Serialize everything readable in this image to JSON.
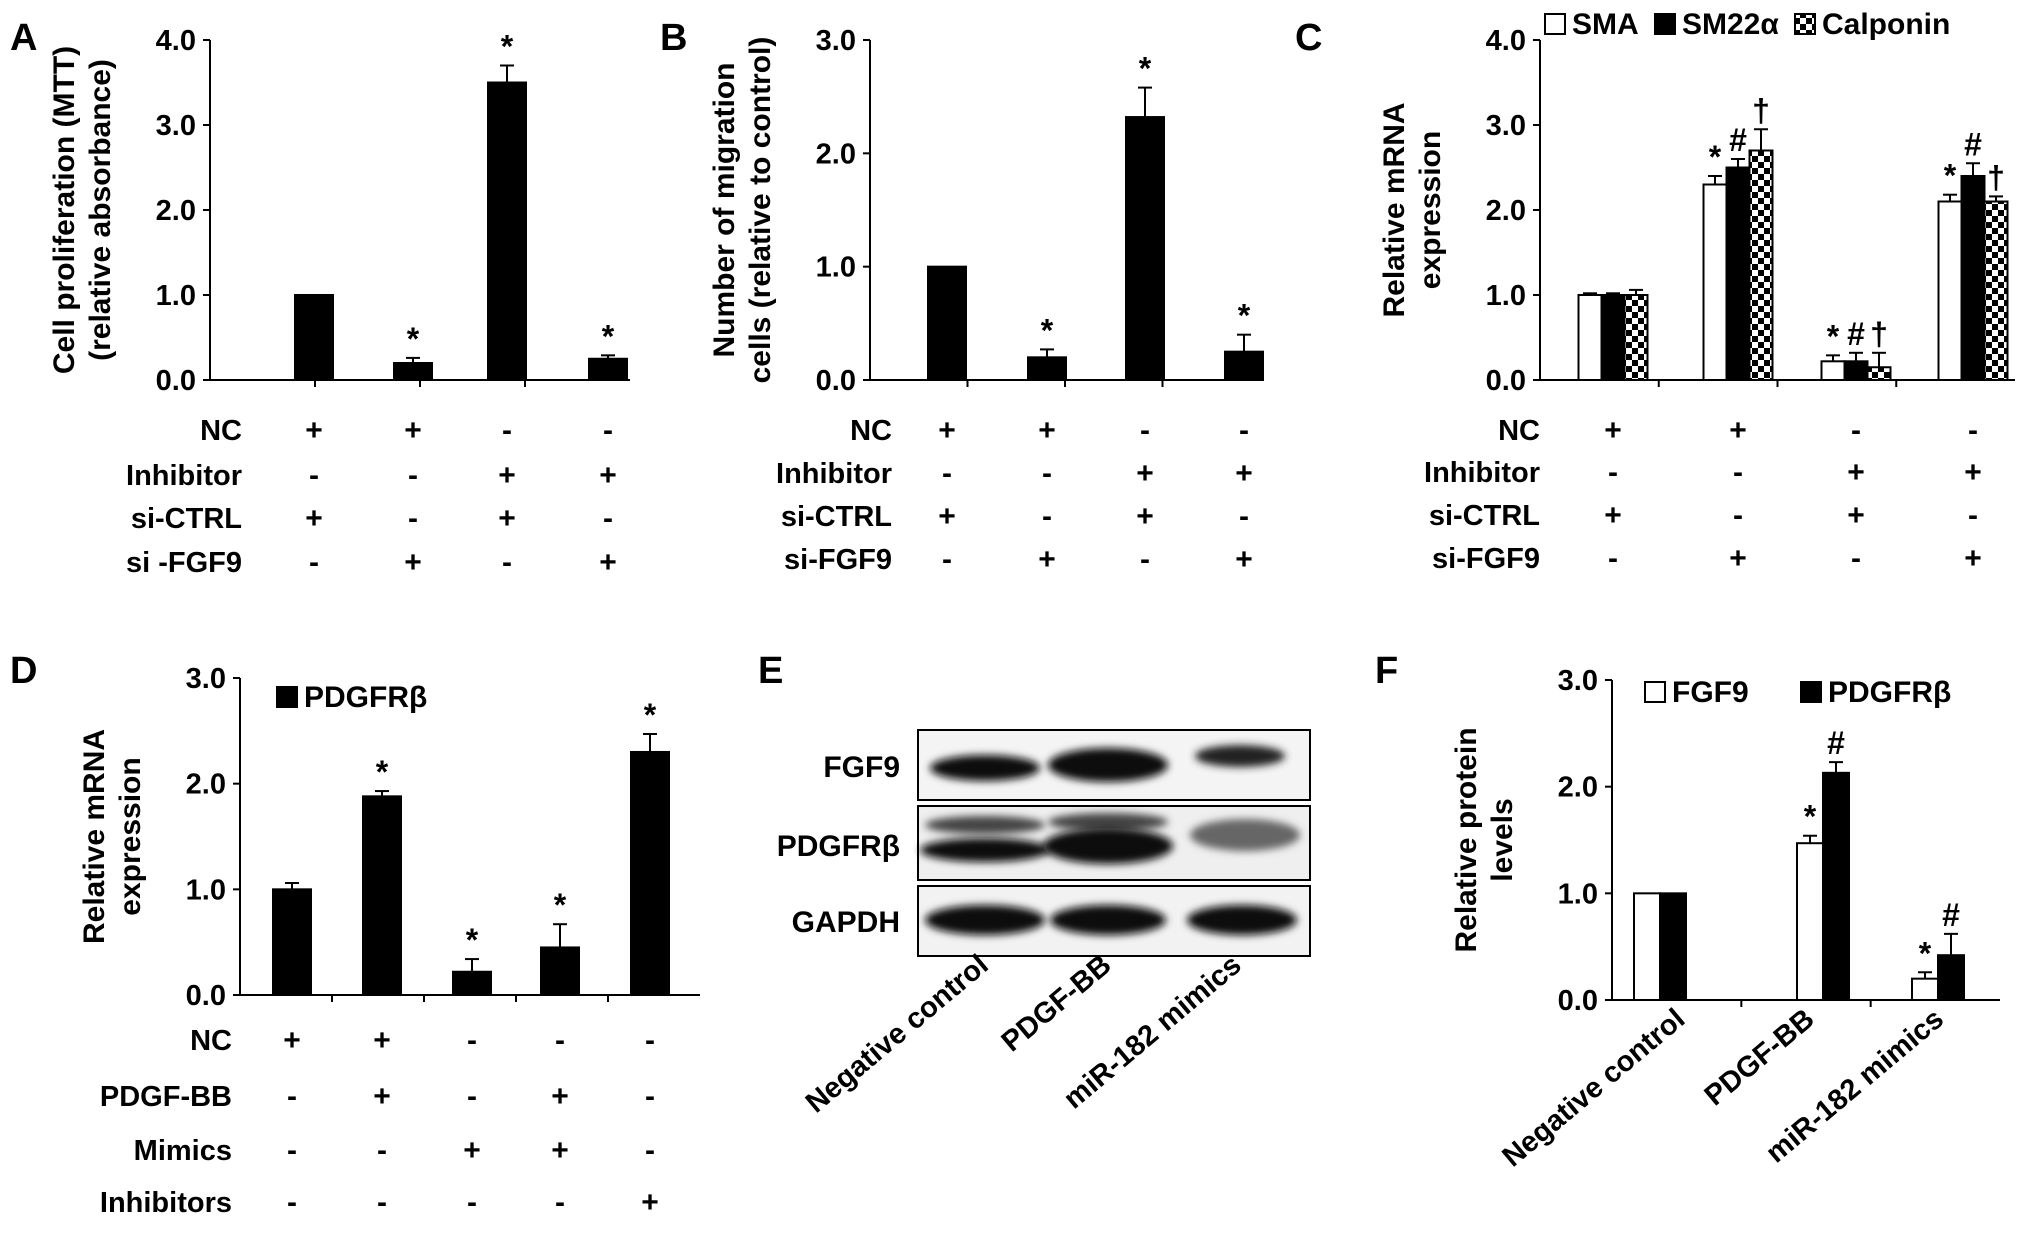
{
  "chart_data": [
    {
      "panel": "A",
      "type": "bar",
      "ylabel": [
        "Cell proliferation (MTT)",
        "(relative absorbance)"
      ],
      "ylim": [
        0,
        4.0
      ],
      "yticks": [
        "0.0",
        "1.0",
        "2.0",
        "3.0",
        "4.0"
      ],
      "categories": [
        "1",
        "2",
        "3",
        "4"
      ],
      "series": [
        {
          "fill": "solid",
          "values": [
            1.0,
            0.2,
            3.5,
            0.25
          ],
          "errors": [
            0,
            0.06,
            0.2,
            0.04
          ],
          "marks": [
            "",
            "*",
            "*",
            "*"
          ]
        }
      ],
      "conditions": [
        {
          "label": "NC",
          "signs": [
            "+",
            "+",
            "-",
            "-"
          ]
        },
        {
          "label": "Inhibitor",
          "signs": [
            "-",
            "-",
            "+",
            "+"
          ]
        },
        {
          "label": "si-CTRL",
          "signs": [
            "+",
            "-",
            "+",
            "-"
          ]
        },
        {
          "label": "si -FGF9",
          "signs": [
            "-",
            "+",
            "-",
            "+"
          ]
        }
      ]
    },
    {
      "panel": "B",
      "type": "bar",
      "ylabel": [
        "Number of migration",
        "cells (relative to control)"
      ],
      "ylim": [
        0,
        3.0
      ],
      "yticks": [
        "0.0",
        "1.0",
        "2.0",
        "3.0"
      ],
      "categories": [
        "1",
        "2",
        "3",
        "4"
      ],
      "series": [
        {
          "fill": "solid",
          "values": [
            1.0,
            0.2,
            2.32,
            0.25
          ],
          "errors": [
            0,
            0.07,
            0.26,
            0.15
          ],
          "marks": [
            "",
            "*",
            "*",
            "*"
          ]
        }
      ],
      "conditions": [
        {
          "label": "NC",
          "signs": [
            "+",
            "+",
            "-",
            "-"
          ]
        },
        {
          "label": "Inhibitor",
          "signs": [
            "-",
            "-",
            "+",
            "+"
          ]
        },
        {
          "label": "si-CTRL",
          "signs": [
            "+",
            "-",
            "+",
            "-"
          ]
        },
        {
          "label": "si-FGF9",
          "signs": [
            "-",
            "+",
            "-",
            "+"
          ]
        }
      ]
    },
    {
      "panel": "C",
      "type": "bar",
      "ylabel": [
        "Relative mRNA",
        "expression"
      ],
      "ylim": [
        0,
        4.0
      ],
      "yticks": [
        "0.0",
        "1.0",
        "2.0",
        "3.0",
        "4.0"
      ],
      "categories": [
        "1",
        "2",
        "3",
        "4"
      ],
      "legend_position": "top",
      "series": [
        {
          "name": "SMA",
          "fill": "white",
          "values": [
            1.0,
            2.3,
            0.22,
            2.1
          ],
          "errors": [
            0.02,
            0.1,
            0.07,
            0.08
          ],
          "marks": [
            "",
            "*",
            "*",
            "*"
          ]
        },
        {
          "name": "SM22α",
          "fill": "solid",
          "values": [
            1.0,
            2.5,
            0.22,
            2.4
          ],
          "errors": [
            0.02,
            0.1,
            0.1,
            0.15
          ],
          "marks": [
            "",
            "#",
            "#",
            "#"
          ]
        },
        {
          "name": "Calponin",
          "fill": "checker",
          "values": [
            1.0,
            2.7,
            0.15,
            2.1
          ],
          "errors": [
            0.06,
            0.25,
            0.17,
            0.06
          ],
          "marks": [
            "",
            "†",
            "†",
            "†"
          ]
        }
      ],
      "conditions": [
        {
          "label": "NC",
          "signs": [
            "+",
            "+",
            "-",
            "-"
          ]
        },
        {
          "label": "Inhibitor",
          "signs": [
            "-",
            "-",
            "+",
            "+"
          ]
        },
        {
          "label": "si-CTRL",
          "signs": [
            "+",
            "-",
            "+",
            "-"
          ]
        },
        {
          "label": "si-FGF9",
          "signs": [
            "-",
            "+",
            "-",
            "+"
          ]
        }
      ]
    },
    {
      "panel": "D",
      "type": "bar",
      "ylabel": [
        "Relative mRNA",
        "expression"
      ],
      "ylim": [
        0,
        3.0
      ],
      "yticks": [
        "0.0",
        "1.0",
        "2.0",
        "3.0"
      ],
      "categories": [
        "1",
        "2",
        "3",
        "4",
        "5"
      ],
      "legend_position": "top-left",
      "series": [
        {
          "name": "PDGFRβ",
          "fill": "solid",
          "values": [
            1.0,
            1.88,
            0.22,
            0.45,
            2.3
          ],
          "errors": [
            0.06,
            0.05,
            0.12,
            0.22,
            0.17
          ],
          "marks": [
            "",
            "*",
            "*",
            "*",
            "*"
          ]
        }
      ],
      "conditions": [
        {
          "label": "NC",
          "signs": [
            "+",
            "+",
            "-",
            "-",
            "-"
          ]
        },
        {
          "label": "PDGF-BB",
          "signs": [
            "-",
            "+",
            "-",
            "+",
            "-"
          ]
        },
        {
          "label": "Mimics",
          "signs": [
            "-",
            "-",
            "+",
            "+",
            "-"
          ]
        },
        {
          "label": "Inhibitors",
          "signs": [
            "-",
            "-",
            "-",
            "-",
            "+"
          ]
        }
      ]
    },
    {
      "panel": "F",
      "type": "bar",
      "ylabel": [
        "Relative protein",
        "levels"
      ],
      "ylim": [
        0,
        3.0
      ],
      "yticks": [
        "0.0",
        "1.0",
        "2.0",
        "3.0"
      ],
      "categories": [
        "Negative control",
        "PDGF-BB",
        "miR-182 mimics"
      ],
      "legend_position": "top",
      "series": [
        {
          "name": "FGF9",
          "fill": "white",
          "values": [
            1.0,
            1.47,
            0.2
          ],
          "errors": [
            0,
            0.07,
            0.06
          ],
          "marks": [
            "",
            "*",
            "*"
          ]
        },
        {
          "name": "PDGFRβ",
          "fill": "solid",
          "values": [
            1.0,
            2.13,
            0.42
          ],
          "errors": [
            0,
            0.1,
            0.2
          ],
          "marks": [
            "",
            "#",
            "#"
          ]
        }
      ]
    }
  ],
  "blot": {
    "panel": "E",
    "rows": [
      "FGF9",
      "PDGFRβ",
      "GAPDH"
    ],
    "lanes": [
      "Negative control",
      "PDGF-BB",
      "miR-182 mimics"
    ]
  }
}
